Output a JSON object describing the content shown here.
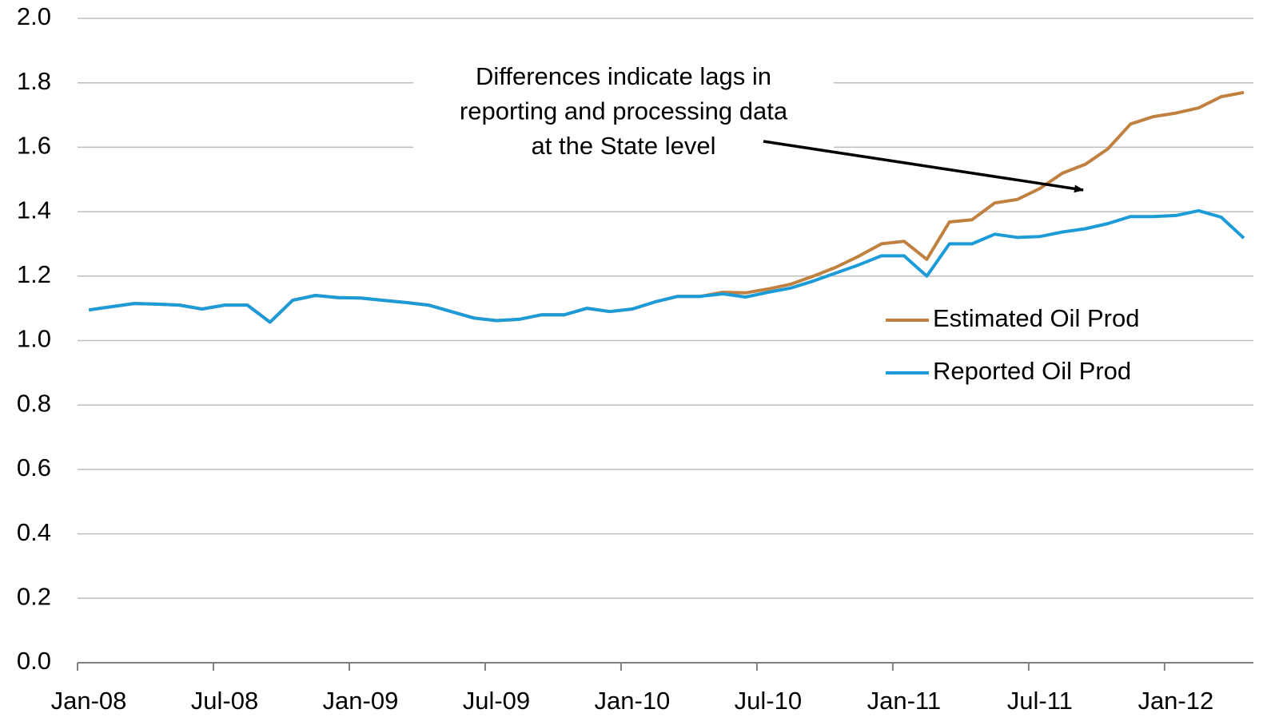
{
  "chart_data": {
    "type": "line",
    "categories": [
      "Jan-08",
      null,
      null,
      null,
      null,
      null,
      "Jul-08",
      null,
      null,
      null,
      null,
      null,
      "Jan-09",
      null,
      null,
      null,
      null,
      null,
      "Jul-09",
      null,
      null,
      null,
      null,
      null,
      "Jan-10",
      null,
      null,
      null,
      null,
      null,
      "Jul-10",
      null,
      null,
      null,
      null,
      null,
      "Jan-11",
      null,
      null,
      null,
      null,
      null,
      "Jul-11",
      null,
      null,
      null,
      null,
      null,
      "Jan-12",
      null,
      null,
      null
    ],
    "series": [
      {
        "name": "Estimated Oil Prod",
        "color": "#c0803f",
        "values": [
          1.095,
          1.105,
          1.115,
          1.113,
          1.11,
          1.098,
          1.11,
          1.11,
          1.057,
          1.125,
          1.14,
          1.133,
          1.132,
          1.125,
          1.118,
          1.11,
          1.09,
          1.07,
          1.062,
          1.066,
          1.08,
          1.08,
          1.1,
          1.09,
          1.098,
          1.12,
          1.137,
          1.137,
          1.15,
          1.148,
          1.16,
          1.175,
          1.2,
          1.228,
          1.262,
          1.3,
          1.308,
          1.252,
          1.368,
          1.375,
          1.427,
          1.438,
          1.472,
          1.52,
          1.547,
          1.595,
          1.672,
          1.695,
          1.706,
          1.722,
          1.757,
          1.77
        ]
      },
      {
        "name": "Reported Oil Prod",
        "color": "#1b9bd7",
        "values": [
          1.095,
          1.105,
          1.115,
          1.113,
          1.11,
          1.098,
          1.11,
          1.11,
          1.057,
          1.125,
          1.14,
          1.133,
          1.132,
          1.125,
          1.118,
          1.11,
          1.09,
          1.07,
          1.062,
          1.066,
          1.08,
          1.08,
          1.1,
          1.09,
          1.098,
          1.12,
          1.137,
          1.137,
          1.145,
          1.135,
          1.15,
          1.163,
          1.185,
          1.21,
          1.235,
          1.263,
          1.263,
          1.2,
          1.3,
          1.3,
          1.33,
          1.32,
          1.323,
          1.337,
          1.347,
          1.363,
          1.385,
          1.385,
          1.388,
          1.403,
          1.383,
          1.318
        ]
      }
    ],
    "ylim": [
      0,
      2
    ],
    "yticks": [
      {
        "value": 0,
        "label": "0.0"
      },
      0.2,
      0.4,
      0.6,
      0.8,
      {
        "value": 1,
        "label": "1.0"
      },
      1.2,
      1.4,
      1.6,
      1.8,
      {
        "value": 2,
        "label": "2.0"
      }
    ],
    "grid": true,
    "legend": "right",
    "annotation": [
      "Differences indicate lags in",
      "reporting and processing data",
      "at the State level"
    ]
  }
}
